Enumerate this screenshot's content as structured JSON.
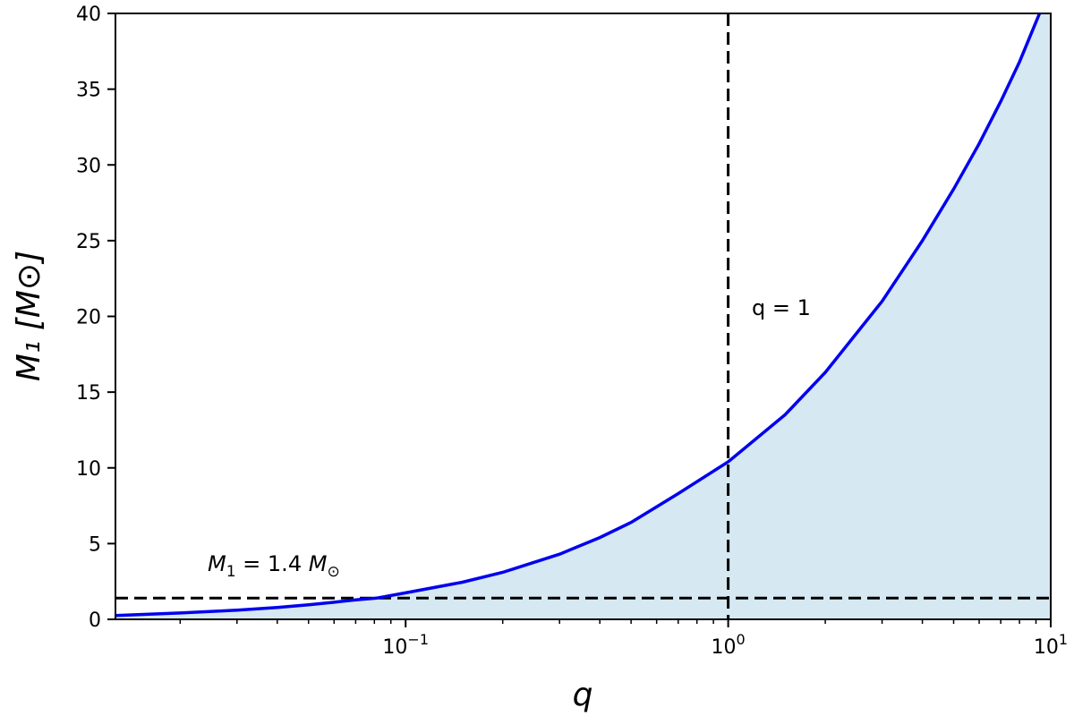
{
  "chart_data": {
    "type": "line",
    "x_scale": "log",
    "xlim": [
      0.0126,
      10
    ],
    "ylim": [
      0,
      40
    ],
    "grid": false,
    "xlabel": "q",
    "ylabel": "M₁ [M⊙]",
    "x_tick_labels": [
      {
        "value": 0.1,
        "base": "10",
        "exp": "−1"
      },
      {
        "value": 1,
        "base": "10",
        "exp": "0"
      },
      {
        "value": 10,
        "base": "10",
        "exp": "1"
      }
    ],
    "y_ticks": [
      0,
      5,
      10,
      15,
      20,
      25,
      30,
      35,
      40
    ],
    "series": [
      {
        "color": "#0000ee",
        "fill": "#d6e8f1",
        "x": [
          0.0126,
          0.02,
          0.03,
          0.04,
          0.05,
          0.06,
          0.07,
          0.0812,
          0.1,
          0.15,
          0.2,
          0.3,
          0.4,
          0.5,
          0.7,
          1,
          1.5,
          2,
          3,
          4,
          5,
          6,
          7,
          8,
          9.23
        ],
        "y": [
          0.25,
          0.42,
          0.61,
          0.78,
          0.96,
          1.13,
          1.29,
          1.4,
          1.75,
          2.45,
          3.1,
          4.3,
          5.4,
          6.4,
          8.3,
          10.4,
          13.5,
          16.3,
          21.0,
          25.0,
          28.4,
          31.4,
          34.2,
          36.8,
          40.0
        ]
      }
    ],
    "reference_lines": [
      {
        "orientation": "horizontal",
        "value": 1.4,
        "style": "dashed",
        "color": "#000000"
      },
      {
        "orientation": "vertical",
        "value": 1,
        "style": "dashed",
        "color": "#000000"
      }
    ],
    "annotations": {
      "q1_label": "q = 1",
      "m_limit": {
        "var": "M",
        "sub": "1",
        "eq": " = 1.4 ",
        "unit": "M",
        "unit_sub": "⊙"
      }
    }
  }
}
